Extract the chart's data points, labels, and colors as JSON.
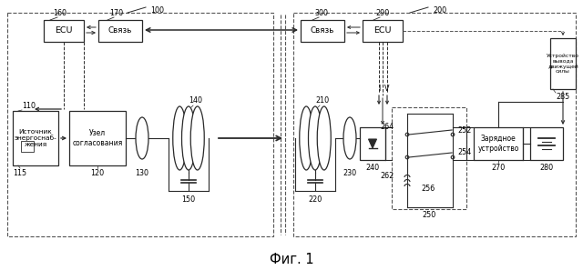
{
  "fig_label": "Фиг. 1",
  "bg": "#ffffff",
  "lc": "#2a2a2a",
  "dc": "#555555",
  "fs": 5.8,
  "fs_sm": 5.0,
  "fs_title": 10.5,
  "texts": {
    "ecu1": "ECU",
    "svyaz1": "Связь",
    "svyaz2": "Связь",
    "ecu2": "ECU",
    "source": "Источник\nэнергоснаб-\nжения",
    "node": "Узел\nсогласования",
    "charge": "Зарядное\nустройство",
    "drive": "Устройство\nвывода\nдвижущей\nсилы",
    "I": "I",
    "V": "V"
  },
  "labels": {
    "100": "100",
    "200": "200",
    "160": "160",
    "170": "170",
    "300": "300",
    "290": "290",
    "285": "285",
    "110": "110",
    "115": "115",
    "120": "120",
    "130": "130",
    "140": "140",
    "150": "150",
    "210": "210",
    "220": "220",
    "230": "230",
    "240": "240",
    "250": "250",
    "252": "252",
    "254": "254",
    "256": "256",
    "262": "262",
    "264": "264",
    "270": "270",
    "280": "280"
  }
}
